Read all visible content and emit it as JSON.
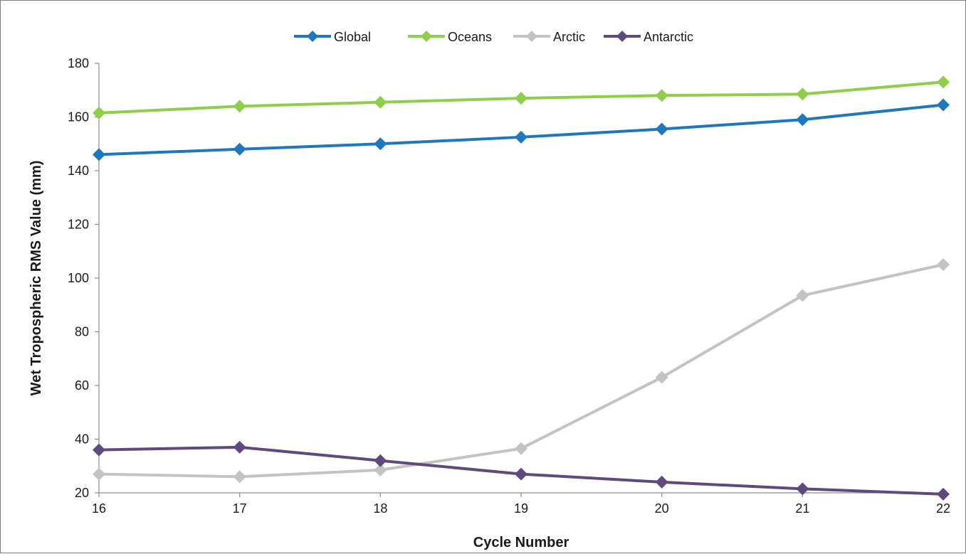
{
  "chart_data": {
    "type": "line",
    "title": "",
    "xlabel": "Cycle Number",
    "ylabel": "Wet Tropospheric RMS Value (mm)",
    "x": [
      16,
      17,
      18,
      19,
      20,
      21,
      22
    ],
    "xlim": [
      16,
      22
    ],
    "ylim": [
      20,
      180
    ],
    "yticks": [
      20,
      40,
      60,
      80,
      100,
      120,
      140,
      160,
      180
    ],
    "grid": false,
    "legend_position": "top",
    "marker": "diamond",
    "series": [
      {
        "name": "Global",
        "color": "#1f77bd",
        "values": [
          146,
          148,
          150,
          152.5,
          155.5,
          159,
          164.5
        ]
      },
      {
        "name": "Oceans",
        "color": "#8fce4a",
        "values": [
          161.5,
          164,
          165.5,
          167,
          168,
          168.5,
          173
        ]
      },
      {
        "name": "Arctic",
        "color": "#c3c3c3",
        "values": [
          27,
          26,
          28.5,
          36.5,
          63,
          93.5,
          105
        ]
      },
      {
        "name": "Antarctic",
        "color": "#5e4a7e",
        "values": [
          36,
          37,
          32,
          27,
          24,
          21.5,
          19.5
        ]
      }
    ]
  }
}
